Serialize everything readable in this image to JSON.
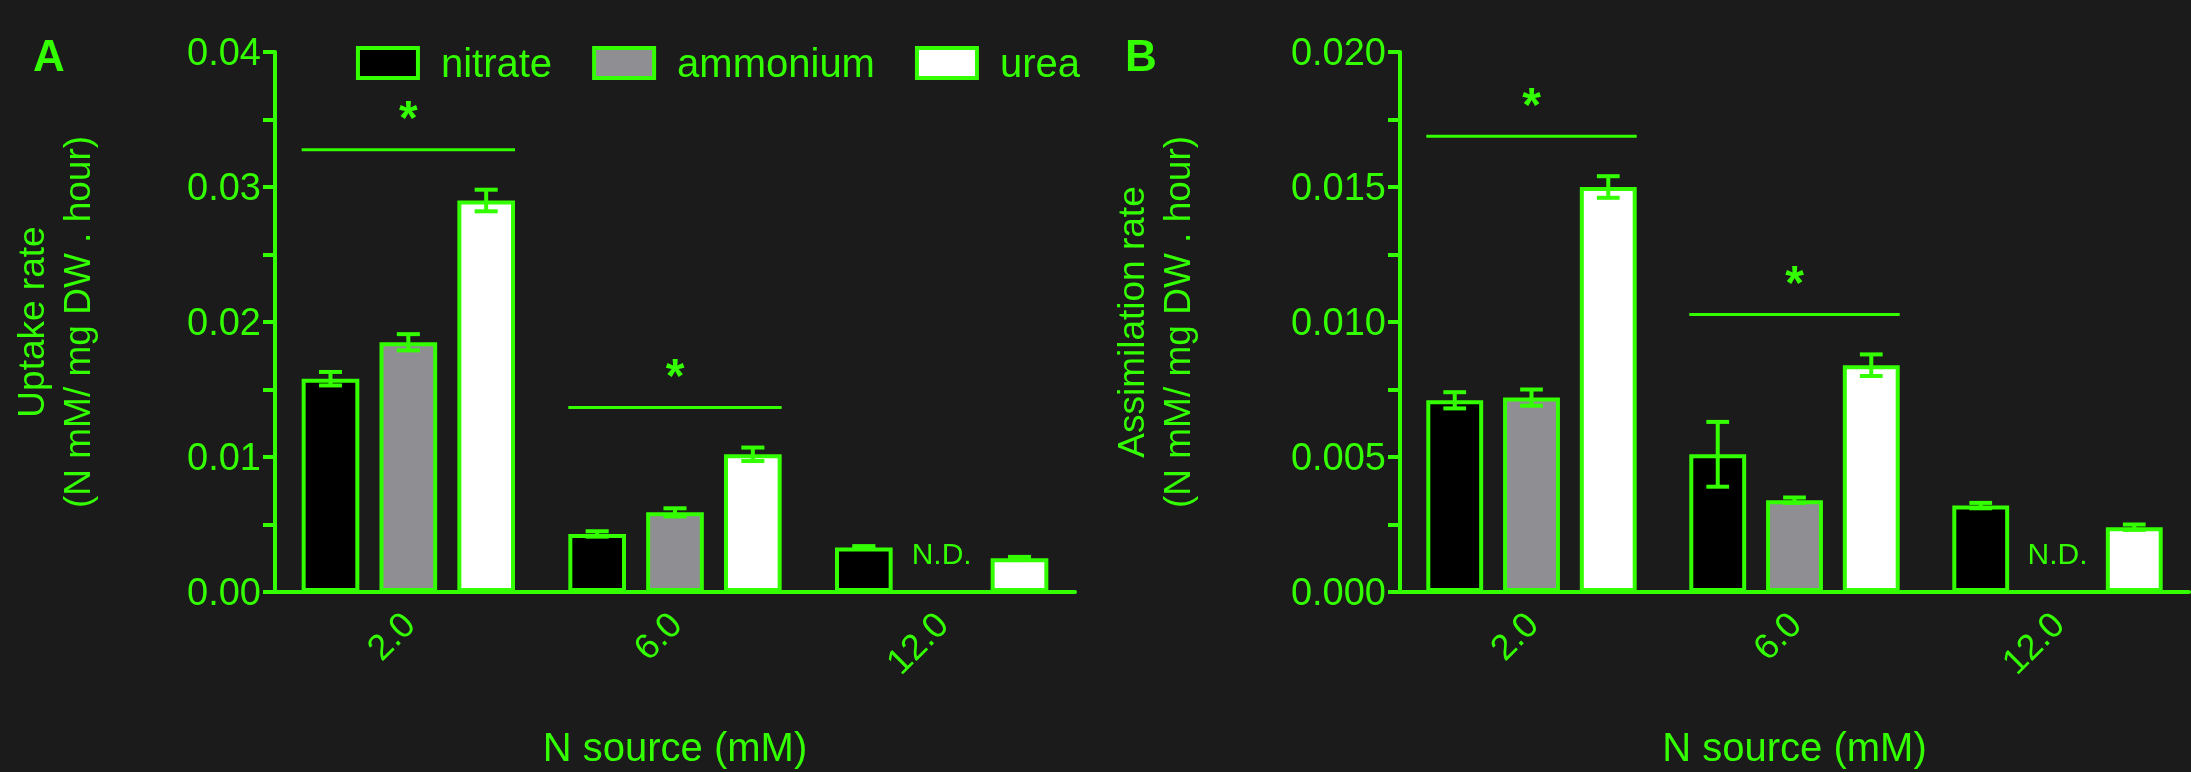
{
  "chart_data": [
    {
      "type": "bar",
      "title": "A",
      "xlabel": "N source (mM)",
      "ylabel": "Uptake rate\n(N mM/ mg DW . hour)",
      "categories": [
        "2.0",
        "6.0",
        "12.0"
      ],
      "series": [
        {
          "name": "nitrate",
          "color": "#000000",
          "values": [
            0.0158,
            0.0043,
            0.0033
          ],
          "errors": [
            0.0005,
            0.0002,
            0.0001
          ]
        },
        {
          "name": "ammonium",
          "color": "#8e8e93",
          "values": [
            0.0185,
            0.0059,
            null
          ],
          "errors": [
            0.0006,
            0.0003,
            null
          ]
        },
        {
          "name": "urea",
          "color": "#ffffff",
          "values": [
            0.029,
            0.0102,
            0.0025
          ],
          "errors": [
            0.0008,
            0.0005,
            0.0001
          ]
        }
      ],
      "ylim": [
        0,
        0.04
      ],
      "yticks": [
        {
          "value": 0,
          "label": "0.00"
        },
        {
          "value": 0.005,
          "label": null
        },
        {
          "value": 0.01,
          "label": "0.01"
        },
        {
          "value": 0.015,
          "label": null
        },
        {
          "value": 0.02,
          "label": "0.02"
        },
        {
          "value": 0.025,
          "label": null
        },
        {
          "value": 0.03,
          "label": "0.03"
        },
        {
          "value": 0.035,
          "label": null
        },
        {
          "value": 0.04,
          "label": "0.04"
        }
      ],
      "annotations": [
        "*",
        "*",
        "N.D."
      ],
      "legend": "top right",
      "grid": false
    },
    {
      "type": "bar",
      "title": "B",
      "xlabel": "N source (mM)",
      "ylabel": "Assimilation rate\n(N mM/ mg DW . hour)",
      "categories": [
        "2.0",
        "6.0",
        "12.0"
      ],
      "series": [
        {
          "color": "#000000",
          "values": [
            0.0071,
            0.0051,
            0.0032
          ],
          "errors": [
            0.0003,
            0.0012,
            0.0001
          ]
        },
        {
          "color": "#8e8e93",
          "values": [
            0.0072,
            0.0034,
            null
          ],
          "errors": [
            0.0003,
            0.0001,
            null
          ]
        },
        {
          "color": "#ffffff",
          "values": [
            0.015,
            0.0084,
            0.0024
          ],
          "errors": [
            0.0004,
            0.0004,
            0.0001
          ]
        }
      ],
      "ylim": [
        0,
        0.02
      ],
      "yticks": [
        {
          "value": 0,
          "label": "0.000"
        },
        {
          "value": 0.0025,
          "label": null
        },
        {
          "value": 0.005,
          "label": "0.005"
        },
        {
          "value": 0.0075,
          "label": null
        },
        {
          "value": 0.01,
          "label": "0.010"
        },
        {
          "value": 0.0125,
          "label": null
        },
        {
          "value": 0.015,
          "label": "0.015"
        },
        {
          "value": 0.0175,
          "label": null
        },
        {
          "value": 0.02,
          "label": "0.020"
        }
      ],
      "annotations": [
        "*",
        "*",
        "N.D."
      ],
      "legend": false,
      "grid": false
    }
  ]
}
